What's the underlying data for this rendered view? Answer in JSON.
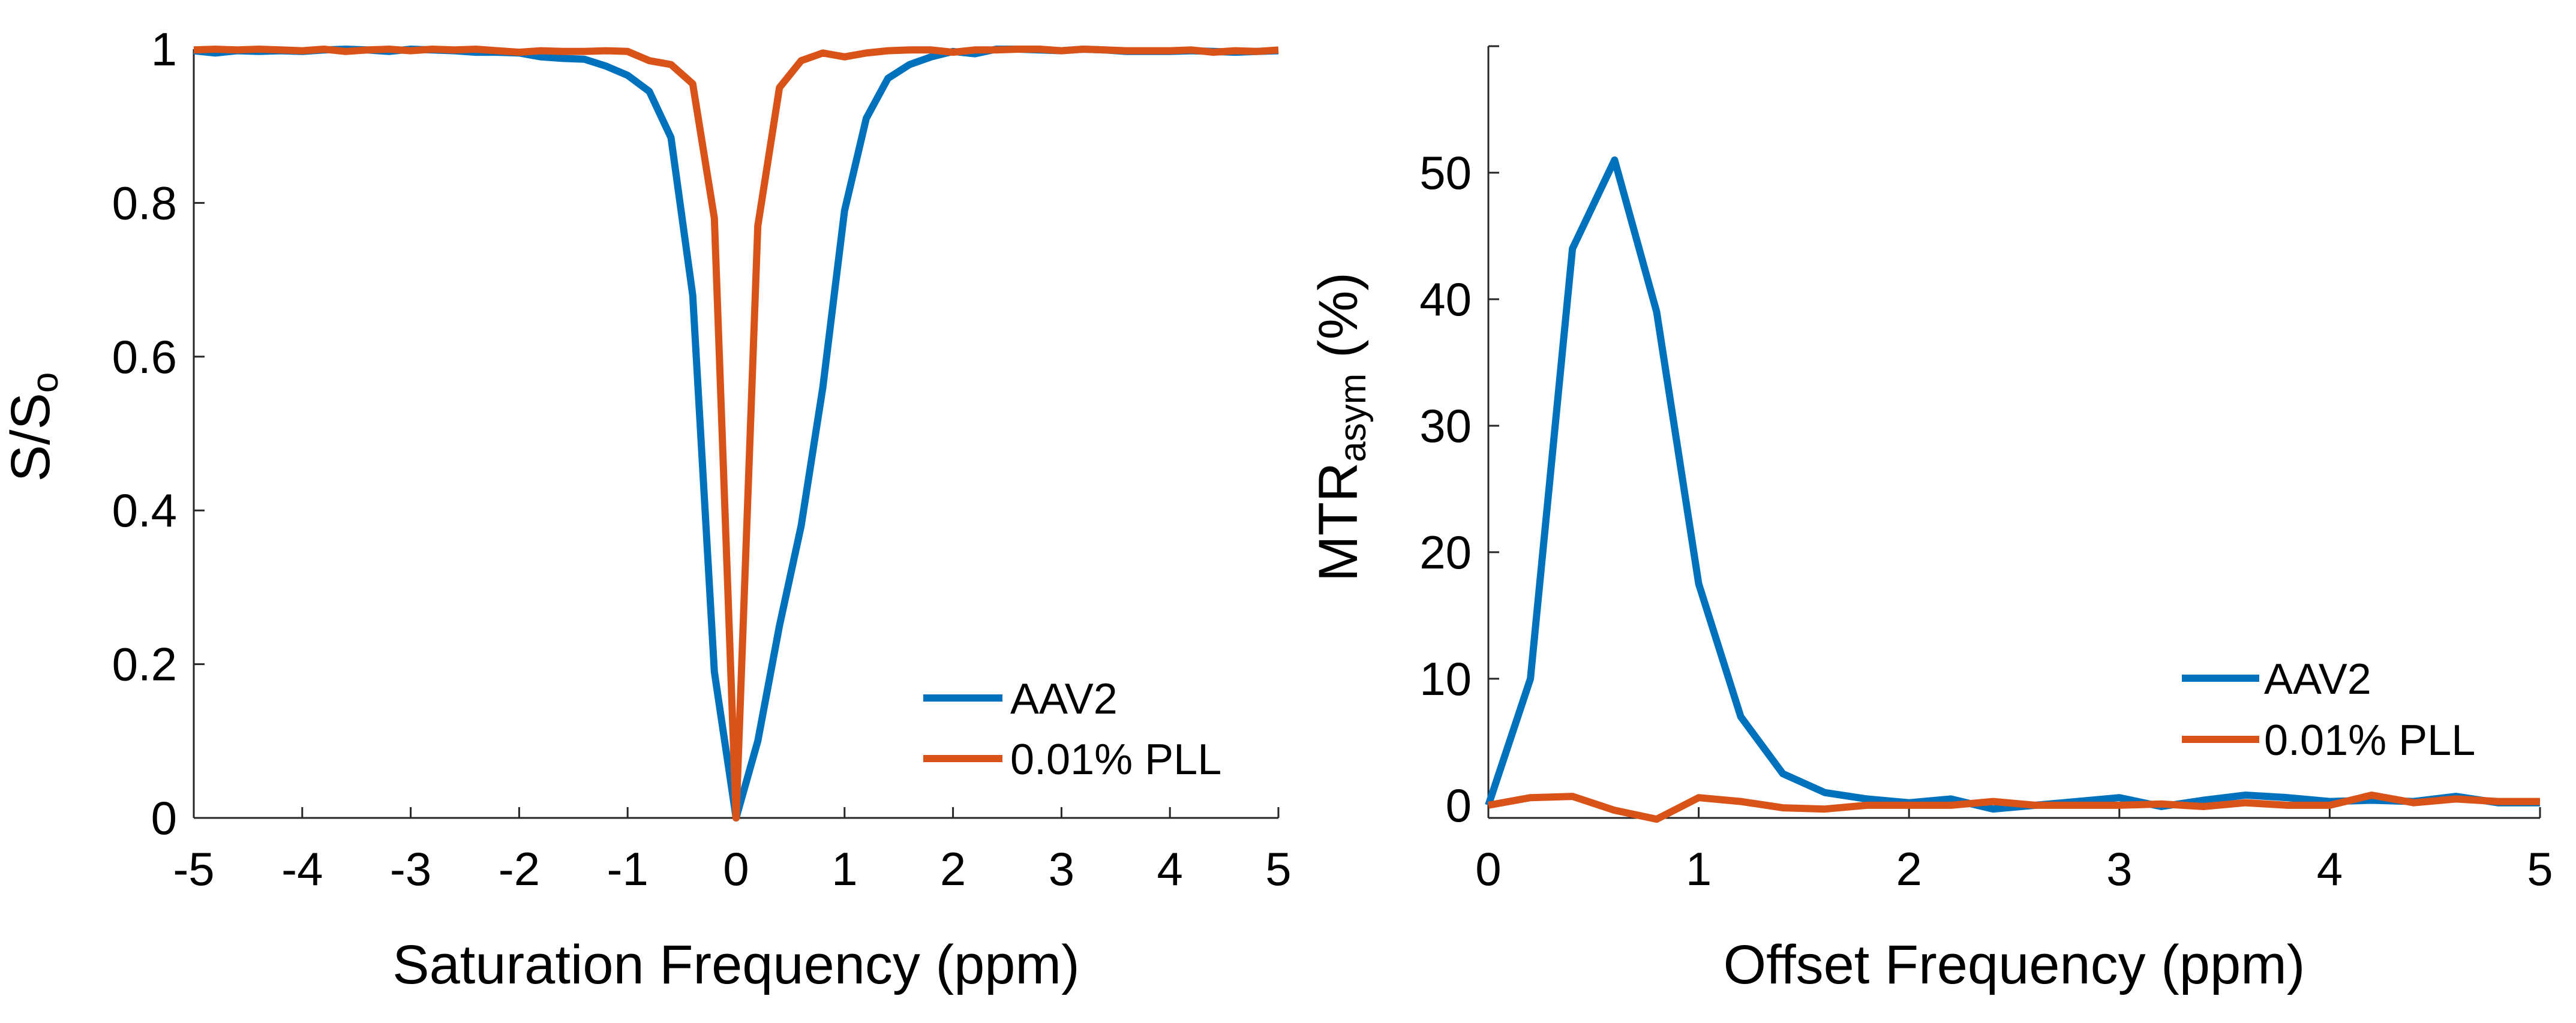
{
  "colors": {
    "AAV2": "#0072BD",
    "PLL": "#D95319",
    "axis": "#262626"
  },
  "chart_data": [
    {
      "type": "line",
      "xlabel": "Saturation Frequency (ppm)",
      "ylabel_main": "S/S",
      "ylabel_sub": "o",
      "xlim": [
        -5,
        5
      ],
      "ylim": [
        0,
        1
      ],
      "xticks": [
        "-5",
        "-4",
        "-3",
        "-2",
        "-1",
        "0",
        "1",
        "2",
        "3",
        "4",
        "5"
      ],
      "xtick_values": [
        -5,
        -4,
        -3,
        -2,
        -1,
        0,
        1,
        2,
        3,
        4,
        5
      ],
      "yticks": [
        "0",
        "0.2",
        "0.4",
        "0.6",
        "0.8",
        "1"
      ],
      "ytick_values": [
        0,
        0.2,
        0.4,
        0.6,
        0.8,
        1
      ],
      "legend_position": "bottom-right",
      "x": [
        -5,
        -4.8,
        -4.6,
        -4.4,
        -4.2,
        -4,
        -3.8,
        -3.6,
        -3.4,
        -3.2,
        -3,
        -2.8,
        -2.6,
        -2.4,
        -2.2,
        -2,
        -1.8,
        -1.6,
        -1.4,
        -1.2,
        -1,
        -0.8,
        -0.6,
        -0.4,
        -0.2,
        0,
        0.2,
        0.4,
        0.6,
        0.8,
        1,
        1.2,
        1.4,
        1.6,
        1.8,
        2,
        2.2,
        2.4,
        2.6,
        2.8,
        3,
        3.2,
        3.4,
        3.6,
        3.8,
        4,
        4.2,
        4.4,
        4.6,
        4.8,
        5
      ],
      "series": [
        {
          "name": "AAV2",
          "values": [
            0.998,
            0.995,
            0.998,
            0.997,
            0.998,
            0.997,
            0.999,
            1.0,
            0.999,
            0.997,
            1.0,
            0.999,
            0.998,
            0.996,
            0.996,
            0.995,
            0.99,
            0.988,
            0.987,
            0.978,
            0.966,
            0.945,
            0.885,
            0.68,
            0.19,
            0,
            0.1,
            0.25,
            0.38,
            0.56,
            0.79,
            0.91,
            0.962,
            0.98,
            0.99,
            0.997,
            0.994,
            1.0,
            1.0,
            0.999,
            0.998,
            1.0,
            0.999,
            0.997,
            0.997,
            0.997,
            0.998,
            0.997,
            0.996,
            0.997,
            0.998
          ]
        },
        {
          "name": "0.01% PLL",
          "values": [
            0.999,
            1.0,
            0.999,
            1.0,
            0.999,
            0.998,
            1.0,
            0.997,
            0.999,
            1.0,
            0.998,
            1.0,
            0.999,
            1.0,
            0.998,
            0.996,
            0.998,
            0.997,
            0.997,
            0.998,
            0.997,
            0.985,
            0.98,
            0.955,
            0.78,
            0,
            0.77,
            0.95,
            0.985,
            0.995,
            0.99,
            0.995,
            0.998,
            0.999,
            0.999,
            0.996,
            0.999,
            0.999,
            1.0,
            1.0,
            0.998,
            1.0,
            0.999,
            0.998,
            0.998,
            0.998,
            0.999,
            0.996,
            0.998,
            0.997,
            0.999
          ]
        }
      ]
    },
    {
      "type": "line",
      "xlabel": "Offset Frequency (ppm)",
      "ylabel_main": "MTR",
      "ylabel_sub": "asym",
      "ylabel_tail": " (%)",
      "xlim": [
        0,
        5
      ],
      "ylim": [
        -1,
        60
      ],
      "xticks": [
        "0",
        "1",
        "2",
        "3",
        "4",
        "5"
      ],
      "xtick_values": [
        0,
        1,
        2,
        3,
        4,
        5
      ],
      "yticks": [
        "0",
        "10",
        "20",
        "30",
        "40",
        "50"
      ],
      "ytick_values": [
        0,
        10,
        20,
        30,
        40,
        50
      ],
      "legend_position": "bottom-right",
      "x": [
        0,
        0.2,
        0.4,
        0.6,
        0.8,
        1,
        1.2,
        1.4,
        1.6,
        1.8,
        2,
        2.2,
        2.4,
        2.6,
        2.8,
        3,
        3.2,
        3.4,
        3.6,
        3.8,
        4,
        4.2,
        4.4,
        4.6,
        4.8,
        5
      ],
      "series": [
        {
          "name": "AAV2",
          "values": [
            0,
            10,
            44,
            51,
            39,
            17.5,
            7,
            2.5,
            1,
            0.5,
            0.2,
            0.5,
            -0.3,
            0,
            0.3,
            0.6,
            -0.1,
            0.4,
            0.8,
            0.6,
            0.3,
            0.4,
            0.3,
            0.7,
            0.2,
            0.2
          ]
        },
        {
          "name": "0.01% PLL",
          "values": [
            0,
            0.6,
            0.7,
            -0.4,
            -1.1,
            0.6,
            0.3,
            -0.2,
            -0.3,
            0,
            0,
            0,
            0.3,
            0,
            0,
            0,
            0.1,
            -0.1,
            0.2,
            0,
            0,
            0.8,
            0.2,
            0.5,
            0.3,
            0.3
          ]
        }
      ]
    }
  ]
}
